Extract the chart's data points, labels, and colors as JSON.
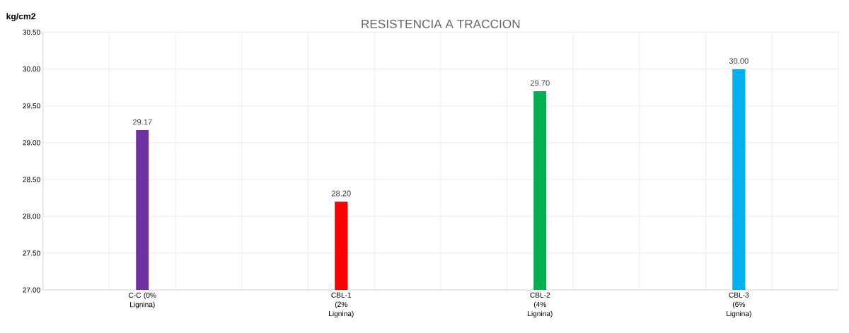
{
  "chart_data": {
    "type": "bar",
    "title": "RESISTENCIA A TRACCION",
    "ylabel": "kg/cm2",
    "categories": [
      "C-C (0% Lignina)",
      "CBL-1 (2% Lignina)",
      "CBL-2 (4% Lignina)",
      "CBL-3 (6% Lignina)"
    ],
    "values": [
      29.17,
      28.2,
      29.7,
      30.0
    ],
    "colors": [
      "#7030a0",
      "#ff0000",
      "#00b050",
      "#00b0f0"
    ],
    "value_labels": [
      "29.17",
      "28.20",
      "29.70",
      "30.00"
    ],
    "ylim": [
      27,
      30.5
    ],
    "yticks": [
      {
        "value": 27,
        "label": "27.00"
      },
      {
        "value": 27.5,
        "label": "27.50"
      },
      {
        "value": 28,
        "label": "28.00"
      },
      {
        "value": 28.5,
        "label": "28.50"
      },
      {
        "value": 29,
        "label": "29.00"
      },
      {
        "value": 29.5,
        "label": "29.50"
      },
      {
        "value": 30,
        "label": "30.00"
      },
      {
        "value": 30.5,
        "label": "30.50"
      }
    ],
    "grid": true
  }
}
